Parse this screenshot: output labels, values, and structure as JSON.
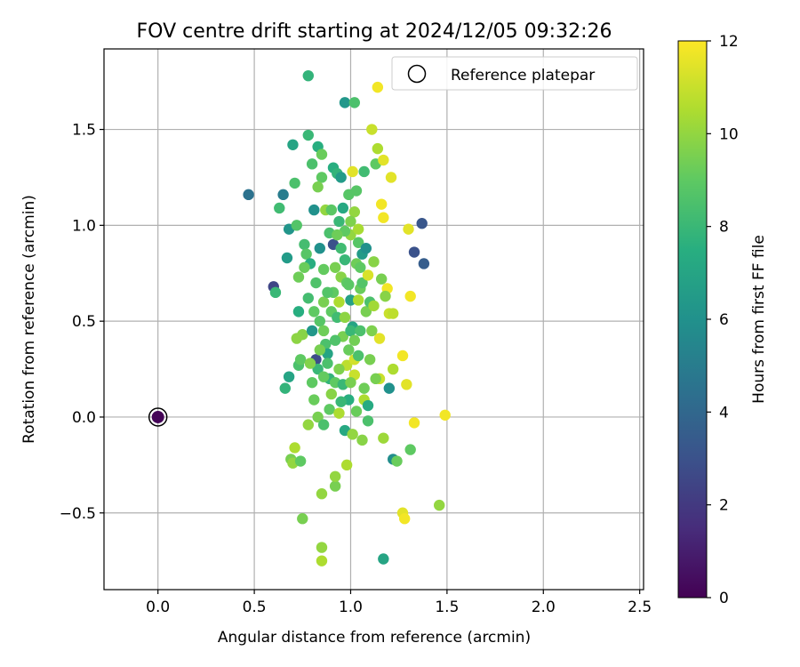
{
  "chart_data": {
    "type": "scatter",
    "title": "FOV centre drift starting at 2024/12/05 09:32:26",
    "xlabel": "Angular distance from reference (arcmin)",
    "ylabel": "Rotation from reference (arcmin)",
    "xlim": [
      -0.28,
      2.52
    ],
    "ylim": [
      -0.9,
      1.92
    ],
    "xticks": [
      0.0,
      0.5,
      1.0,
      1.5,
      2.0,
      2.5
    ],
    "xtick_labels": [
      "0.0",
      "0.5",
      "1.0",
      "1.5",
      "2.0",
      "2.5"
    ],
    "yticks": [
      -0.5,
      0.0,
      0.5,
      1.0,
      1.5
    ],
    "ytick_labels": [
      "−0.5",
      "0.0",
      "0.5",
      "1.0",
      "1.5"
    ],
    "grid": true,
    "legend": {
      "position": "top-right",
      "label": "Reference platepar"
    },
    "colorbar": {
      "label": "Hours from first FF file",
      "range": [
        0,
        12
      ],
      "ticks": [
        0,
        2,
        4,
        6,
        8,
        10
      ],
      "tick_labels": [
        "0",
        "2",
        "4",
        "6",
        "8",
        "10"
      ],
      "top_label": "12",
      "colormap": "viridis"
    },
    "reference_point": {
      "x": 0.0,
      "y": 0.0,
      "hours": 0.1
    },
    "points": [
      [
        0.47,
        1.16,
        4.5
      ],
      [
        0.6,
        0.68,
        2.5
      ],
      [
        0.61,
        0.65,
        8.0
      ],
      [
        0.63,
        1.09,
        8.2
      ],
      [
        0.65,
        1.16,
        5.0
      ],
      [
        0.66,
        0.15,
        7.8
      ],
      [
        0.67,
        0.83,
        6.5
      ],
      [
        0.68,
        0.98,
        6.2
      ],
      [
        0.7,
        1.42,
        7.0
      ],
      [
        0.71,
        1.22,
        8.5
      ],
      [
        0.72,
        1.0,
        8.7
      ],
      [
        0.73,
        0.55,
        7.5
      ],
      [
        0.73,
        0.27,
        8.5
      ],
      [
        0.74,
        0.3,
        9.0
      ],
      [
        0.75,
        0.43,
        9.8
      ],
      [
        0.76,
        0.9,
        8.3
      ],
      [
        0.77,
        0.85,
        8.8
      ],
      [
        0.78,
        1.78,
        7.8
      ],
      [
        0.78,
        1.47,
        8.0
      ],
      [
        0.79,
        0.8,
        7.5
      ],
      [
        0.8,
        0.45,
        6.3
      ],
      [
        0.8,
        1.32,
        8.5
      ],
      [
        0.81,
        1.08,
        6.0
      ],
      [
        0.82,
        0.7,
        8.6
      ],
      [
        0.82,
        0.3,
        2.8
      ],
      [
        0.83,
        1.41,
        7.5
      ],
      [
        0.83,
        0.25,
        8.0
      ],
      [
        0.84,
        0.88,
        6.0
      ],
      [
        0.84,
        0.5,
        8.8
      ],
      [
        0.85,
        1.25,
        9.0
      ],
      [
        0.85,
        1.37,
        9.2
      ],
      [
        0.86,
        0.6,
        9.5
      ],
      [
        0.86,
        0.45,
        9.3
      ],
      [
        0.87,
        1.08,
        10.0
      ],
      [
        0.87,
        0.38,
        8.5
      ],
      [
        0.88,
        0.33,
        7.0
      ],
      [
        0.89,
        0.2,
        7.8
      ],
      [
        0.9,
        0.55,
        9.0
      ],
      [
        0.91,
        0.9,
        3.0
      ],
      [
        0.91,
        1.3,
        7.5
      ],
      [
        0.91,
        0.65,
        9.0
      ],
      [
        0.92,
        0.78,
        9.5
      ],
      [
        0.92,
        0.18,
        9.0
      ],
      [
        0.93,
        1.27,
        7.8
      ],
      [
        0.93,
        0.52,
        8.2
      ],
      [
        0.94,
        1.02,
        8.0
      ],
      [
        0.94,
        0.6,
        10.5
      ],
      [
        0.95,
        0.73,
        9.8
      ],
      [
        0.95,
        1.25,
        6.5
      ],
      [
        0.96,
        1.09,
        7.2
      ],
      [
        0.96,
        0.42,
        9.5
      ],
      [
        0.97,
        1.64,
        6.3
      ],
      [
        0.97,
        0.82,
        8.0
      ],
      [
        0.98,
        0.7,
        9.0
      ],
      [
        0.98,
        0.27,
        10.8
      ],
      [
        0.99,
        1.16,
        8.8
      ],
      [
        0.99,
        0.35,
        9.2
      ],
      [
        1.0,
        0.95,
        10.0
      ],
      [
        1.0,
        0.61,
        6.8
      ],
      [
        1.01,
        1.28,
        11.5
      ],
      [
        1.01,
        0.47,
        7.0
      ],
      [
        1.02,
        1.64,
        8.5
      ],
      [
        1.02,
        1.07,
        10.0
      ],
      [
        1.02,
        0.3,
        11.2
      ],
      [
        1.03,
        0.8,
        9.3
      ],
      [
        1.04,
        0.91,
        8.8
      ],
      [
        1.04,
        0.61,
        10.5
      ],
      [
        1.05,
        0.67,
        9.2
      ],
      [
        1.06,
        0.7,
        8.7
      ],
      [
        1.06,
        0.85,
        6.5
      ],
      [
        1.07,
        1.28,
        8.2
      ],
      [
        1.08,
        0.55,
        9.5
      ],
      [
        1.08,
        0.88,
        6.0
      ],
      [
        1.09,
        0.74,
        11.3
      ],
      [
        1.1,
        0.6,
        8.5
      ],
      [
        1.11,
        1.5,
        11.0
      ],
      [
        1.12,
        0.81,
        9.8
      ],
      [
        1.13,
        1.32,
        9.0
      ],
      [
        1.14,
        1.72,
        11.8
      ],
      [
        1.14,
        1.4,
        10.5
      ],
      [
        1.15,
        0.2,
        11.0
      ],
      [
        1.15,
        0.41,
        11.5
      ],
      [
        1.16,
        0.72,
        9.5
      ],
      [
        1.16,
        1.11,
        11.8
      ],
      [
        1.17,
        1.34,
        11.5
      ],
      [
        1.17,
        1.04,
        11.8
      ],
      [
        1.19,
        0.67,
        11.8
      ],
      [
        1.2,
        0.54,
        11.0
      ],
      [
        1.2,
        0.15,
        6.0
      ],
      [
        1.21,
        1.25,
        11.5
      ],
      [
        1.22,
        -0.22,
        5.8
      ],
      [
        1.22,
        0.25,
        10.5
      ],
      [
        1.22,
        0.54,
        10.8
      ],
      [
        1.27,
        -0.5,
        11.5
      ],
      [
        1.27,
        0.32,
        11.8
      ],
      [
        1.28,
        -0.53,
        11.8
      ],
      [
        1.29,
        0.17,
        11.5
      ],
      [
        1.3,
        0.98,
        11.5
      ],
      [
        1.31,
        -0.17,
        9.0
      ],
      [
        1.31,
        0.63,
        11.8
      ],
      [
        1.33,
        0.86,
        3.0
      ],
      [
        1.33,
        -0.03,
        11.8
      ],
      [
        1.37,
        1.01,
        3.2
      ],
      [
        1.38,
        0.8,
        3.5
      ],
      [
        1.46,
        -0.46,
        10.0
      ],
      [
        1.49,
        0.01,
        11.8
      ],
      [
        0.68,
        0.21,
        7.0
      ],
      [
        0.69,
        -0.22,
        9.5
      ],
      [
        0.7,
        -0.24,
        10.0
      ],
      [
        0.71,
        -0.16,
        10.5
      ],
      [
        0.74,
        -0.23,
        9.0
      ],
      [
        0.75,
        -0.53,
        9.5
      ],
      [
        0.78,
        -0.04,
        10.0
      ],
      [
        0.81,
        0.09,
        9.2
      ],
      [
        0.83,
        0.0,
        9.5
      ],
      [
        0.85,
        -0.4,
        10.0
      ],
      [
        0.85,
        -0.68,
        10.0
      ],
      [
        0.85,
        -0.75,
        10.5
      ],
      [
        0.86,
        -0.04,
        8.5
      ],
      [
        0.89,
        0.04,
        9.0
      ],
      [
        0.92,
        -0.36,
        9.5
      ],
      [
        0.92,
        -0.31,
        10.0
      ],
      [
        0.94,
        0.02,
        10.5
      ],
      [
        0.96,
        0.17,
        8.0
      ],
      [
        0.97,
        -0.07,
        7.2
      ],
      [
        0.98,
        -0.25,
        10.5
      ],
      [
        0.99,
        0.09,
        7.5
      ],
      [
        1.0,
        0.45,
        8.0
      ],
      [
        1.01,
        -0.09,
        10.0
      ],
      [
        1.02,
        0.22,
        11.0
      ],
      [
        1.03,
        0.03,
        9.2
      ],
      [
        1.04,
        0.32,
        8.5
      ],
      [
        1.06,
        -0.12,
        9.8
      ],
      [
        1.07,
        0.09,
        10.5
      ],
      [
        1.09,
        -0.02,
        8.5
      ],
      [
        1.09,
        0.06,
        7.3
      ],
      [
        1.13,
        0.2,
        9.5
      ],
      [
        1.17,
        -0.74,
        7.0
      ],
      [
        1.17,
        -0.11,
        10.2
      ],
      [
        1.24,
        -0.23,
        9.2
      ],
      [
        0.8,
        0.18,
        9.0
      ],
      [
        0.84,
        0.35,
        9.5
      ],
      [
        0.88,
        0.28,
        8.5
      ],
      [
        0.9,
        0.12,
        9.8
      ],
      [
        0.95,
        0.08,
        8.0
      ],
      [
        1.0,
        0.18,
        9.5
      ],
      [
        1.05,
        0.45,
        8.5
      ],
      [
        1.1,
        0.3,
        9.5
      ],
      [
        0.76,
        0.78,
        9.2
      ],
      [
        0.78,
        0.62,
        8.3
      ],
      [
        0.89,
        0.96,
        8.5
      ],
      [
        0.97,
        0.97,
        9.0
      ],
      [
        1.03,
        1.18,
        8.8
      ],
      [
        0.73,
        0.73,
        9.3
      ],
      [
        0.83,
        1.2,
        9.5
      ],
      [
        0.9,
        1.08,
        8.9
      ],
      [
        0.95,
        0.88,
        8.2
      ],
      [
        1.11,
        0.45,
        9.6
      ],
      [
        1.18,
        0.63,
        9.8
      ],
      [
        0.86,
        0.21,
        9.1
      ],
      [
        0.92,
        0.4,
        8.6
      ],
      [
        0.97,
        0.52,
        9.9
      ],
      [
        1.02,
        0.4,
        9.4
      ],
      [
        1.07,
        0.15,
        9.3
      ],
      [
        0.79,
        0.28,
        9.7
      ],
      [
        0.88,
        0.65,
        8.7
      ],
      [
        0.94,
        0.25,
        9.6
      ],
      [
        0.99,
        0.69,
        8.9
      ],
      [
        1.05,
        0.78,
        9.0
      ],
      [
        1.12,
        0.58,
        10.3
      ],
      [
        0.72,
        0.41,
        9.9
      ],
      [
        0.81,
        0.55,
        9.0
      ],
      [
        0.86,
        0.77,
        9.1
      ],
      [
        0.93,
        0.95,
        9.3
      ],
      [
        1.0,
        1.02,
        9.6
      ],
      [
        1.04,
        0.98,
        10.4
      ]
    ]
  }
}
